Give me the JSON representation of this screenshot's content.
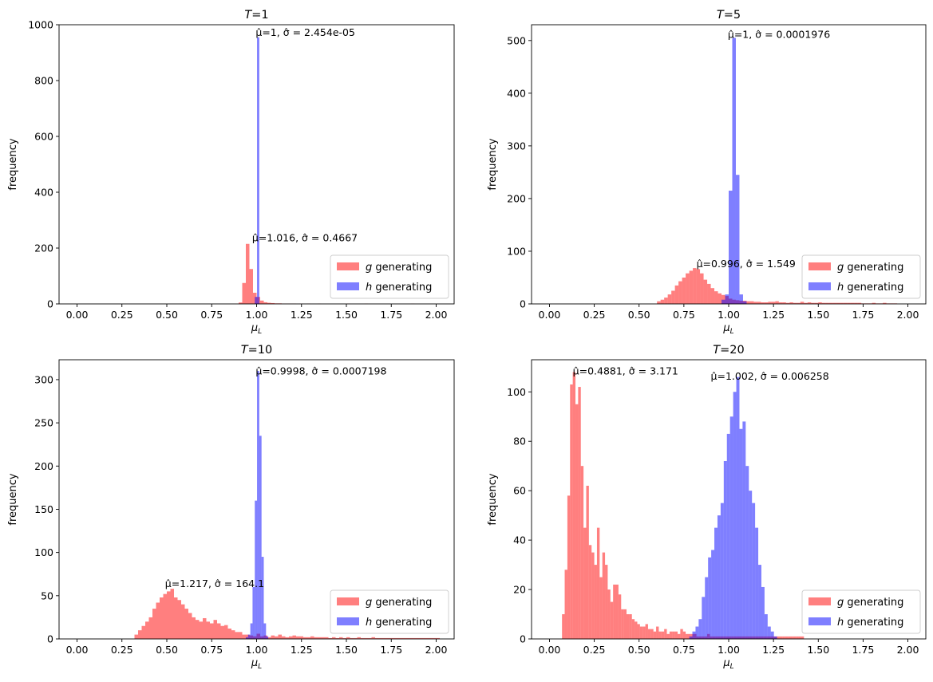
{
  "figure": {
    "background": "#ffffff"
  },
  "colors": {
    "g": "#ff0000",
    "h": "#0000ff",
    "alpha": 0.5
  },
  "chart_data": [
    {
      "type": "histogram",
      "title": "T=1",
      "title_var": "T",
      "title_value": "1",
      "xlabel": "μ",
      "xlabel_sub": "L",
      "ylabel": "frequency",
      "xlim": [
        -0.1,
        2.1
      ],
      "ylim": [
        0,
        1000
      ],
      "xticks": [
        "0.00",
        "0.25",
        "0.50",
        "0.75",
        "1.00",
        "1.25",
        "1.50",
        "1.75",
        "2.00"
      ],
      "yticks": [
        "0",
        "200",
        "400",
        "600",
        "800",
        "1000"
      ],
      "legend": {
        "position": "lower-right",
        "entries": [
          {
            "var": "g",
            "text": " generating"
          },
          {
            "var": "h",
            "text": " generating"
          }
        ]
      },
      "annotations": [
        {
          "text": "μ̂=1, σ̂ = 2.454e-05",
          "x": 0.995,
          "y": 960
        },
        {
          "text": "μ̂=1.016, σ̂ = 0.4667",
          "x": 0.975,
          "y": 225
        }
      ],
      "series": [
        {
          "name": "g generating",
          "bin_start": 0.9,
          "bin_width": 0.02,
          "values": [
            5,
            75,
            215,
            125,
            40,
            25,
            12,
            6,
            4,
            3,
            2,
            2,
            1,
            1,
            1,
            1,
            0,
            1,
            0,
            1,
            0,
            0,
            1,
            0,
            0,
            0,
            0,
            0,
            0,
            0,
            1,
            0,
            0,
            0,
            0,
            1,
            0,
            0,
            0,
            0,
            0,
            0,
            0,
            0,
            0,
            0,
            0,
            0,
            1
          ]
        },
        {
          "name": "h generating",
          "bin_start": 0.99,
          "bin_width": 0.0125,
          "values": [
            25,
            955
          ]
        }
      ]
    },
    {
      "type": "histogram",
      "title": "T=5",
      "title_var": "T",
      "title_value": "5",
      "xlabel": "μ",
      "xlabel_sub": "L",
      "ylabel": "frequency",
      "xlim": [
        -0.1,
        2.1
      ],
      "ylim": [
        0,
        530
      ],
      "xticks": [
        "0.00",
        "0.25",
        "0.50",
        "0.75",
        "1.00",
        "1.25",
        "1.50",
        "1.75",
        "2.00"
      ],
      "yticks": [
        "0",
        "100",
        "200",
        "300",
        "400",
        "500"
      ],
      "legend": {
        "position": "lower-right",
        "entries": [
          {
            "var": "g",
            "text": " generating"
          },
          {
            "var": "h",
            "text": " generating"
          }
        ]
      },
      "annotations": [
        {
          "text": "μ̂=1, σ̂ = 0.0001976",
          "x": 0.995,
          "y": 505
        },
        {
          "text": "μ̂=0.996, σ̂ = 1.549",
          "x": 0.82,
          "y": 70
        }
      ],
      "series": [
        {
          "name": "g generating",
          "bin_start": 0.6,
          "bin_width": 0.02,
          "values": [
            5,
            8,
            12,
            18,
            25,
            35,
            43,
            50,
            58,
            63,
            68,
            66,
            58,
            46,
            38,
            30,
            24,
            20,
            17,
            15,
            10,
            8,
            7,
            6,
            6,
            5,
            5,
            4,
            4,
            3,
            3,
            4,
            4,
            5,
            3,
            3,
            2,
            3,
            2,
            2,
            4,
            2,
            3,
            2,
            2,
            3,
            2,
            2,
            2,
            2,
            2,
            2,
            2,
            2,
            2,
            2,
            2,
            1,
            1,
            1,
            2,
            1,
            1,
            2,
            1,
            1,
            1
          ]
        },
        {
          "name": "h generating",
          "bin_start": 0.96,
          "bin_width": 0.02,
          "values": [
            8,
            18,
            215,
            505,
            245,
            18,
            5
          ]
        }
      ]
    },
    {
      "type": "histogram",
      "title": "T=10",
      "title_var": "T",
      "title_value": "10",
      "xlabel": "μ",
      "xlabel_sub": "L",
      "ylabel": "frequency",
      "xlim": [
        -0.1,
        2.1
      ],
      "ylim": [
        0,
        323
      ],
      "xticks": [
        "0.00",
        "0.25",
        "0.50",
        "0.75",
        "1.00",
        "1.25",
        "1.50",
        "1.75",
        "2.00"
      ],
      "yticks": [
        "0",
        "50",
        "100",
        "150",
        "200",
        "250",
        "300"
      ],
      "legend": {
        "position": "lower-right",
        "entries": [
          {
            "var": "g",
            "text": " generating"
          },
          {
            "var": "h",
            "text": " generating"
          }
        ]
      },
      "annotations": [
        {
          "text": "μ̂=0.9998, σ̂ = 0.0007198",
          "x": 0.995,
          "y": 306
        },
        {
          "text": "μ̂=1.217, σ̂ = 164.1",
          "x": 0.49,
          "y": 60
        }
      ],
      "series": [
        {
          "name": "g generating",
          "bin_start": 0.32,
          "bin_width": 0.02,
          "values": [
            5,
            10,
            15,
            20,
            25,
            35,
            42,
            48,
            52,
            55,
            58,
            48,
            45,
            40,
            35,
            30,
            25,
            22,
            20,
            24,
            20,
            18,
            22,
            18,
            15,
            16,
            12,
            10,
            8,
            8,
            5,
            5,
            4,
            3,
            6,
            3,
            4,
            2,
            4,
            3,
            5,
            3,
            2,
            3,
            4,
            3,
            3,
            2,
            2,
            3,
            2,
            2,
            2,
            2,
            1,
            2,
            1,
            2,
            1,
            2,
            1,
            1,
            2,
            1,
            1,
            1,
            2,
            1,
            1,
            1,
            1,
            1,
            1,
            1,
            1,
            1,
            1,
            1,
            1,
            1,
            1,
            1,
            1,
            1,
            1
          ]
        },
        {
          "name": "h generating",
          "bin_start": 0.94,
          "bin_width": 0.0125,
          "values": [
            2,
            5,
            18,
            60,
            160,
            310,
            235,
            95,
            18,
            3
          ]
        }
      ]
    },
    {
      "type": "histogram",
      "title": "T=20",
      "title_var": "T",
      "title_value": "20",
      "xlabel": "μ",
      "xlabel_sub": "L",
      "ylabel": "frequency",
      "xlim": [
        -0.1,
        2.1
      ],
      "ylim": [
        0,
        113
      ],
      "xticks": [
        "0.00",
        "0.25",
        "0.50",
        "0.75",
        "1.00",
        "1.25",
        "1.50",
        "1.75",
        "2.00"
      ],
      "yticks": [
        "0",
        "20",
        "40",
        "60",
        "80",
        "100"
      ],
      "legend": {
        "position": "lower-right",
        "entries": [
          {
            "var": "g",
            "text": " generating"
          },
          {
            "var": "h",
            "text": " generating"
          }
        ]
      },
      "annotations": [
        {
          "text": "μ̂=0.4881, σ̂ = 3.171",
          "x": 0.13,
          "y": 107
        },
        {
          "text": "μ̂=1.002, σ̂ = 0.006258",
          "x": 0.9,
          "y": 105
        }
      ],
      "series": [
        {
          "name": "g generating",
          "bin_start": 0.07,
          "bin_width": 0.015,
          "values": [
            10,
            28,
            58,
            103,
            108,
            95,
            102,
            70,
            45,
            62,
            38,
            35,
            30,
            45,
            25,
            35,
            30,
            20,
            15,
            22,
            22,
            18,
            12,
            12,
            10,
            10,
            8,
            7,
            6,
            5,
            5,
            6,
            4,
            4,
            3,
            5,
            3,
            3,
            4,
            2,
            3,
            3,
            3,
            2,
            4,
            3,
            2,
            2,
            2,
            2,
            1,
            1,
            1,
            1,
            2,
            1,
            1,
            1,
            1,
            1,
            1,
            1,
            1,
            1,
            1,
            1,
            1,
            1,
            1,
            1,
            1,
            1,
            1,
            1,
            1,
            1,
            1,
            1,
            1,
            1,
            1,
            1,
            1,
            1,
            1,
            1,
            1,
            1,
            1,
            1
          ]
        },
        {
          "name": "h generating",
          "bin_start": 0.78,
          "bin_width": 0.0175,
          "values": [
            1,
            3,
            5,
            8,
            17,
            25,
            33,
            36,
            45,
            50,
            55,
            72,
            83,
            90,
            100,
            106,
            85,
            88,
            70,
            60,
            55,
            45,
            30,
            21,
            10,
            5,
            3,
            1
          ]
        }
      ]
    }
  ]
}
